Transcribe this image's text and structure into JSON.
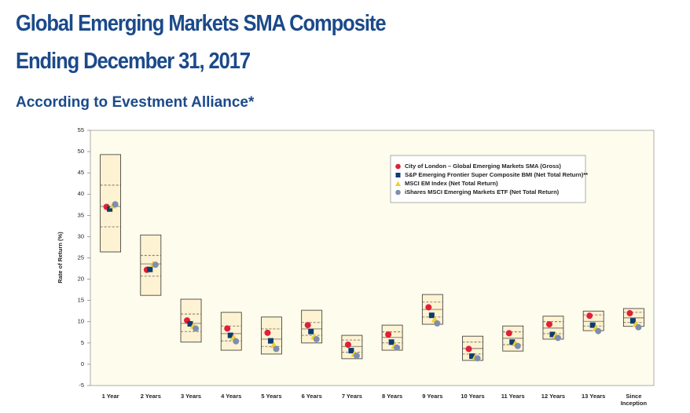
{
  "chart_data": {
    "type": "range-box",
    "title_lines": [
      "Global Emerging Markets SMA Composite",
      "Ending December 31, 2017"
    ],
    "subtitle": "According to Evestment Alliance*",
    "y_label": "Rate of Return (%)",
    "categories": [
      "1 Year",
      "2 Years",
      "3 Years",
      "4 Years",
      "5 Years",
      "6 Years",
      "7 Years",
      "8 Years",
      "9 Years",
      "10 Years",
      "11 Years",
      "12 Years",
      "13 Years",
      "Since Inception"
    ],
    "box_max": [
      49.3,
      30.4,
      15.3,
      12.2,
      11.1,
      12.7,
      6.8,
      9.2,
      16.4,
      6.6,
      9.0,
      11.3,
      12.5,
      13.1
    ],
    "box_upper": [
      42.1,
      25.6,
      11.8,
      9.0,
      8.3,
      9.8,
      5.7,
      7.6,
      14.6,
      5.2,
      7.6,
      10.0,
      11.6,
      12.2
    ],
    "box_median": [
      37.1,
      23.6,
      9.6,
      7.2,
      5.9,
      8.3,
      4.2,
      6.3,
      12.9,
      3.7,
      6.1,
      8.5,
      10.1,
      10.9
    ],
    "box_lower": [
      32.3,
      20.7,
      7.7,
      5.5,
      4.2,
      6.8,
      2.8,
      5.0,
      11.1,
      2.4,
      4.6,
      7.2,
      9.0,
      9.8
    ],
    "box_min": [
      26.4,
      16.2,
      5.2,
      3.3,
      2.4,
      5.0,
      1.3,
      3.3,
      9.4,
      0.9,
      3.1,
      5.9,
      7.9,
      8.9
    ],
    "series": [
      {
        "name": "City of London – Global Emerging Markets SMA (Gross)",
        "color": "#e0203a",
        "marker": "circle",
        "values": [
          37.0,
          22.2,
          10.3,
          8.4,
          7.4,
          9.2,
          4.6,
          7.0,
          13.4,
          3.6,
          7.3,
          9.4,
          11.4,
          12.0
        ]
      },
      {
        "name": "S&P Emerging Frontier Super Composite BMI (Net Total Return)**",
        "color": "#0d3d6e",
        "marker": "square",
        "values": [
          36.5,
          22.3,
          9.5,
          6.8,
          5.5,
          7.7,
          3.2,
          5.2,
          11.5,
          1.9,
          5.2,
          7.0,
          9.2,
          10.2
        ]
      },
      {
        "name": "MSCI EM Index (Net Total Return)",
        "color": "#f3cf2e",
        "marker": "triangle",
        "values": [
          37.3,
          23.5,
          9.0,
          6.3,
          4.5,
          6.5,
          2.4,
          4.3,
          10.5,
          1.6,
          4.9,
          6.7,
          8.5,
          9.5
        ]
      },
      {
        "name": "iShares MSCI Emerging Markets ETF (Net Total Return)",
        "color": "#7e8fae",
        "marker": "circle",
        "values": [
          37.6,
          23.4,
          8.4,
          5.4,
          3.6,
          5.9,
          2.0,
          3.9,
          9.6,
          1.4,
          4.3,
          6.2,
          7.8,
          8.7
        ]
      }
    ],
    "ylim": [
      -5,
      55
    ],
    "yticks": [
      -5,
      0,
      5,
      10,
      15,
      20,
      25,
      30,
      35,
      40,
      45,
      50,
      55
    ]
  }
}
